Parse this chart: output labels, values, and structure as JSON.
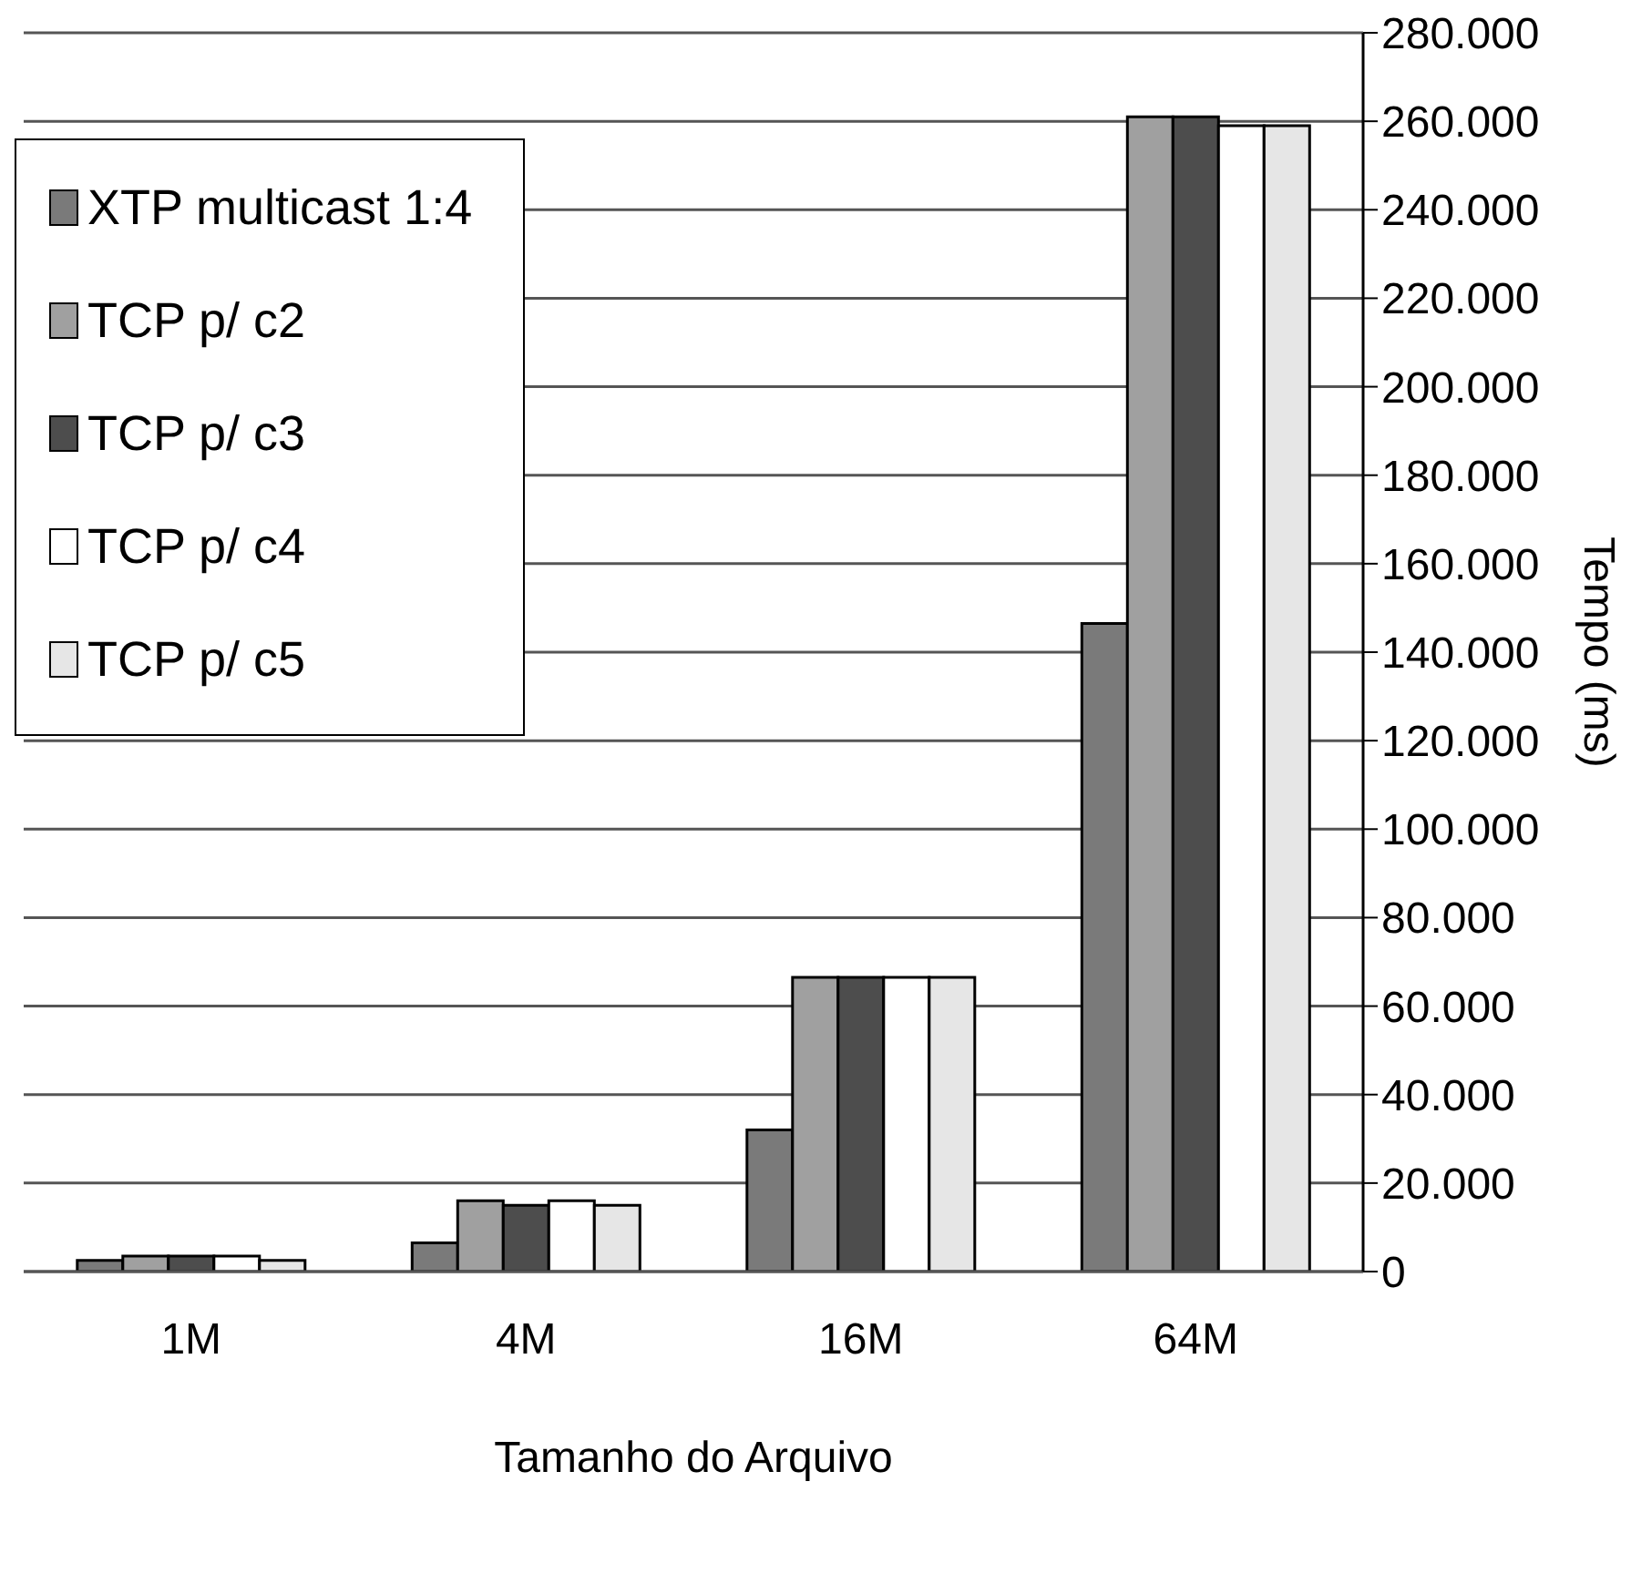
{
  "chart_data": {
    "type": "bar",
    "xlabel": "Tamanho do Arquivo",
    "ylabel": "Tempo (ms)",
    "categories": [
      "1M",
      "4M",
      "16M",
      "64M"
    ],
    "series": [
      {
        "name": "XTP multicast 1:4",
        "color": "#7a7a7a",
        "values": [
          2500,
          6500,
          32000,
          146500
        ]
      },
      {
        "name": "TCP p/ c2",
        "color": "#a0a0a0",
        "values": [
          3500,
          16000,
          66500,
          261000
        ]
      },
      {
        "name": "TCP p/ c3",
        "color": "#4d4d4d",
        "values": [
          3500,
          15000,
          66500,
          261000
        ]
      },
      {
        "name": "TCP p/ c4",
        "color": "#ffffff",
        "values": [
          3500,
          16000,
          66500,
          259000
        ]
      },
      {
        "name": "TCP p/ c5",
        "color": "#e6e6e6",
        "values": [
          2500,
          15000,
          66500,
          259000
        ]
      }
    ],
    "ylim": [
      0,
      280000
    ],
    "yticks": [
      0,
      {
        "value": 20000,
        "label": "20.000"
      },
      {
        "value": 40000,
        "label": "40.000"
      },
      {
        "value": 60000,
        "label": "60.000"
      },
      {
        "value": 80000,
        "label": "80.000"
      },
      {
        "value": 100000,
        "label": "100.000"
      },
      {
        "value": 120000,
        "label": "120.000"
      },
      {
        "value": 140000,
        "label": "140.000"
      },
      {
        "value": 160000,
        "label": "160.000"
      },
      {
        "value": 180000,
        "label": "180.000"
      },
      {
        "value": 200000,
        "label": "200.000"
      },
      {
        "value": 220000,
        "label": "220.000"
      },
      {
        "value": 240000,
        "label": "240.000"
      },
      {
        "value": 260000,
        "label": "260.000"
      },
      {
        "value": 280000,
        "label": "280.000"
      }
    ],
    "grid": "y",
    "legend": "top left"
  }
}
